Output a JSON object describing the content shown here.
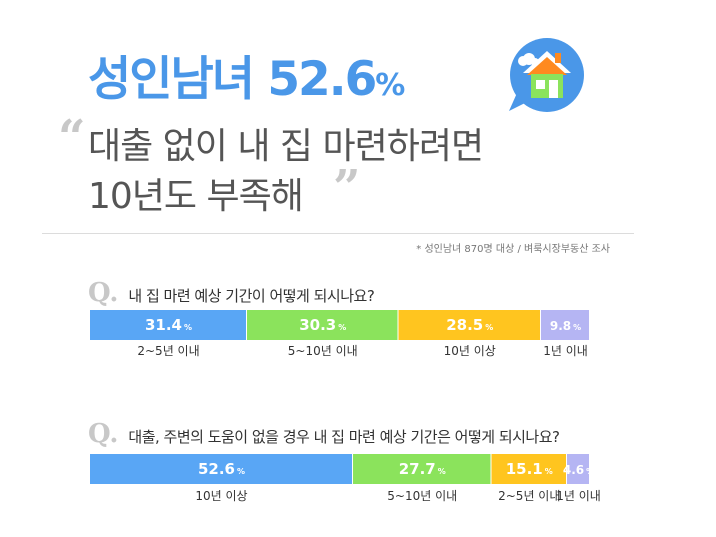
{
  "headline": {
    "main": "성인남녀 52.6",
    "pct": "%"
  },
  "subtitle": {
    "line1": "대출 없이 내 집 마련하려면",
    "line2": "10년도 부족해"
  },
  "source": "* 성인남녀 870명 대상 / 벼룩시장부동산 조사",
  "icons": {
    "house": "house-speech-bubble-icon"
  },
  "colors": {
    "blue": "#59a6f5",
    "green": "#8be35c",
    "yellow": "#ffc51f",
    "lavender": "#b5b5f3",
    "headline": "#4a97e8"
  },
  "chart_data": [
    {
      "type": "bar",
      "stacked": true,
      "orientation": "horizontal",
      "title": "내 집 마련 예상 기간이 어떻게 되시나요?",
      "qmark": "Q.",
      "unit": "%",
      "categories": [
        "2~5년 이내",
        "5~10년 이내",
        "10년 이상",
        "1년 이내"
      ],
      "values": [
        31.4,
        30.3,
        28.5,
        9.8
      ],
      "value_labels": [
        "31.4",
        "30.3",
        "28.5",
        "9.8"
      ],
      "colors": [
        "#59a6f5",
        "#8be35c",
        "#ffc51f",
        "#b5b5f3"
      ]
    },
    {
      "type": "bar",
      "stacked": true,
      "orientation": "horizontal",
      "title": "대출, 주변의 도움이 없을 경우 내 집 마련 예상 기간은 어떻게 되시나요?",
      "qmark": "Q.",
      "unit": "%",
      "categories": [
        "10년 이상",
        "5~10년 이내",
        "2~5년 이내",
        "1년 이내"
      ],
      "values": [
        52.6,
        27.7,
        15.1,
        4.6
      ],
      "value_labels": [
        "52.6",
        "27.7",
        "15.1",
        "4.6"
      ],
      "colors": [
        "#59a6f5",
        "#8be35c",
        "#ffc51f",
        "#b5b5f3"
      ]
    }
  ]
}
